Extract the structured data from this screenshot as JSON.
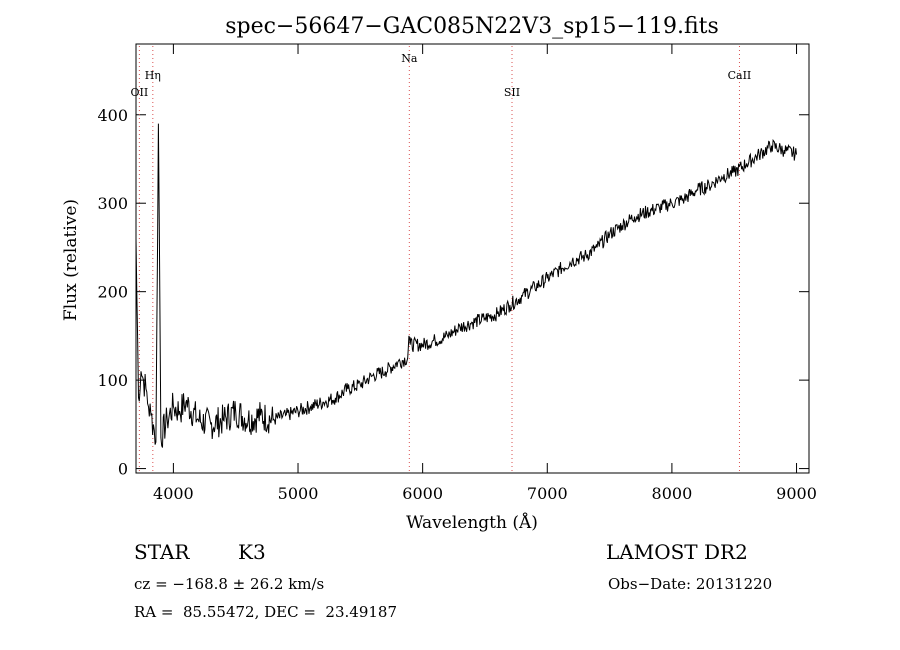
{
  "chart_data": {
    "type": "line",
    "title": "spec−56647−GAC085N22V3_sp15−119.fits",
    "xlabel": "Wavelength (Å)",
    "ylabel": "Flux (relative)",
    "xlim": [
      3700,
      9100
    ],
    "ylim": [
      -5,
      480
    ],
    "xticks": [
      4000,
      5000,
      6000,
      7000,
      8000,
      9000
    ],
    "yticks": [
      0,
      100,
      200,
      300,
      400
    ],
    "grid": false,
    "line_color": "#000000",
    "marker_line_color": "#d94f4f",
    "lines": [
      {
        "label": "OII",
        "wavelength": 3727,
        "label_level": "low"
      },
      {
        "label": "Hη",
        "wavelength": 3835,
        "label_level": "mid"
      },
      {
        "label": "Na",
        "wavelength": 5893,
        "label_level": "high"
      },
      {
        "label": "SII",
        "wavelength": 6717,
        "label_level": "low"
      },
      {
        "label": "CaII",
        "wavelength": 8542,
        "label_level": "mid"
      }
    ],
    "series": [
      {
        "x": [
          3700,
          3720,
          3740,
          3760,
          3780,
          3800,
          3820,
          3840,
          3860,
          3880,
          3900,
          3950,
          4000,
          4050,
          4100,
          4200,
          4300,
          4400,
          4500,
          4600,
          4700,
          4800,
          4900,
          5000,
          5100,
          5200,
          5300,
          5400,
          5500,
          5600,
          5700,
          5800,
          5880,
          5890,
          5900,
          6000,
          6100,
          6200,
          6300,
          6400,
          6500,
          6600,
          6700,
          6800,
          6900,
          7000,
          7100,
          7200,
          7300,
          7400,
          7500,
          7600,
          7700,
          7800,
          7900,
          8000,
          8100,
          8200,
          8300,
          8400,
          8500,
          8600,
          8700,
          8800,
          8900,
          9000
        ],
        "y": [
          260,
          80,
          110,
          100,
          90,
          70,
          60,
          50,
          30,
          390,
          35,
          55,
          70,
          65,
          75,
          55,
          50,
          55,
          65,
          55,
          60,
          55,
          60,
          65,
          70,
          75,
          80,
          90,
          95,
          105,
          110,
          120,
          125,
          150,
          140,
          140,
          145,
          150,
          160,
          165,
          170,
          175,
          185,
          195,
          205,
          215,
          225,
          235,
          240,
          250,
          265,
          275,
          285,
          290,
          295,
          300,
          305,
          315,
          320,
          330,
          335,
          345,
          355,
          365,
          360,
          355
        ]
      }
    ]
  },
  "info": {
    "class": "STAR",
    "subclass": "K3",
    "survey": "LAMOST DR2",
    "cz": "cz = −168.8 ± 26.2 km/s",
    "obs_date": "Obs−Date: 20131220",
    "coords": "RA =  85.55472, DEC =  23.49187"
  }
}
